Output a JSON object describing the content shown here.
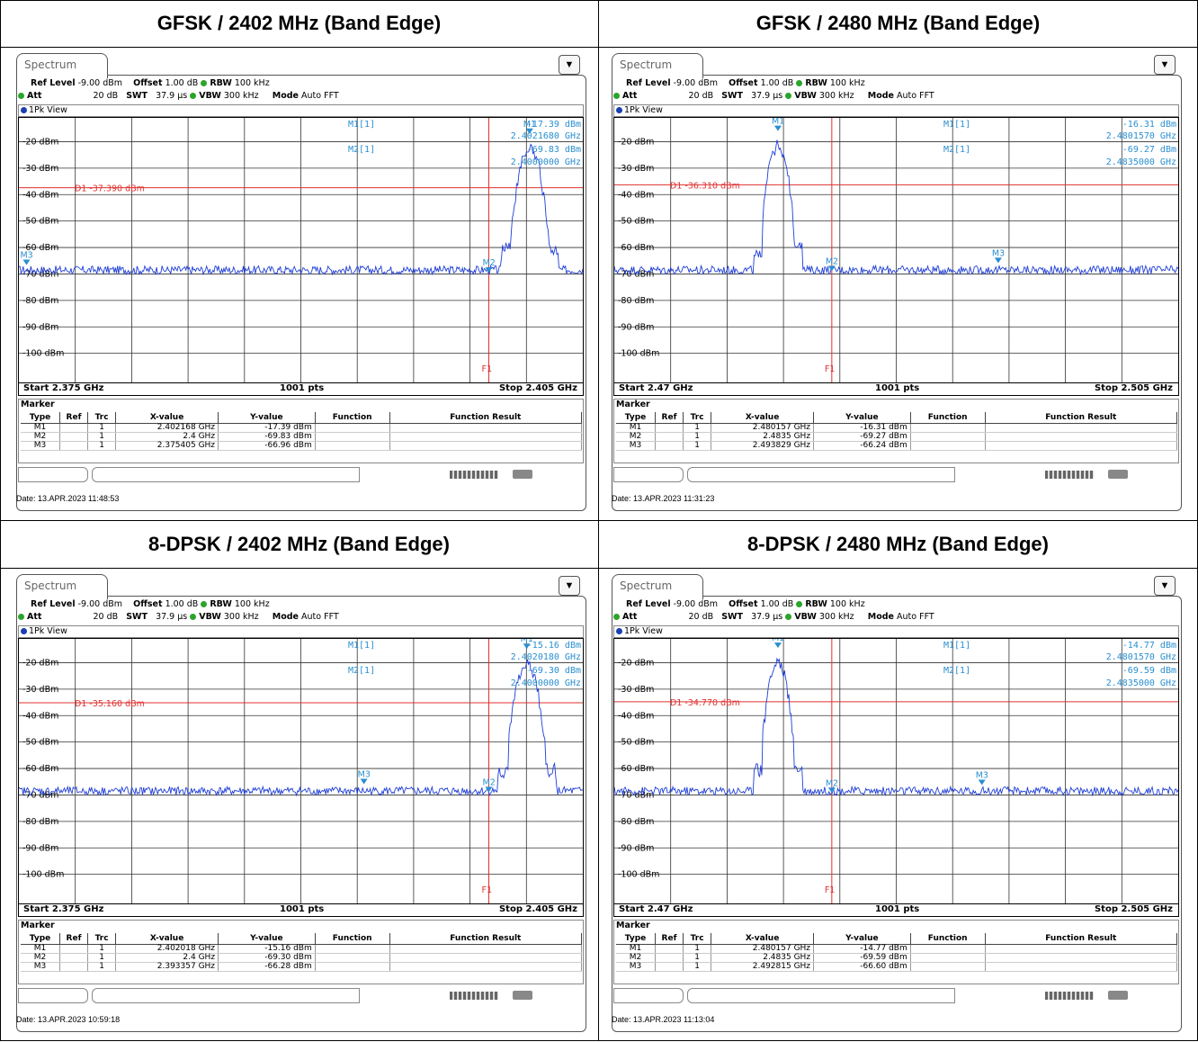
{
  "panels": [
    {
      "title": "GFSK / 2402 MHz (Band Edge)",
      "tab": "Spectrum",
      "ref_level_label": "Ref Level",
      "ref_level": "-9.00 dBm",
      "offset_label": "Offset",
      "offset": "1.00 dB",
      "rbw_label": "RBW",
      "rbw": "100 kHz",
      "att_label": "Att",
      "att": "20 dB",
      "swt_label": "SWT",
      "swt": "37.9 µs",
      "vbw_label": "VBW",
      "vbw": "300 kHz",
      "mode_label": "Mode",
      "mode": "Auto FFT",
      "view": "1Pk View",
      "d1_label": "D1 -37.390 dBm",
      "d1_value": -37.39,
      "m1_label": "M1[1]",
      "m1_y": "-17.39 dBm",
      "m1_x": "2.4021680 GHz",
      "m2_label": "M2[1]",
      "m2_y": "-69.83 dBm",
      "m2_x": "2.4000000 GHz",
      "start": "Start 2.375 GHz",
      "pts": "1001 pts",
      "stop": "Stop 2.405 GHz",
      "f1_label": "F1",
      "marker_title": "Marker",
      "cols": [
        "Type",
        "Ref",
        "Trc",
        "X-value",
        "Y-value",
        "Function",
        "Function Result"
      ],
      "rows": [
        [
          "M1",
          "",
          "1",
          "2.402168 GHz",
          "-17.39 dBm",
          "",
          ""
        ],
        [
          "M2",
          "",
          "1",
          "2.4 GHz",
          "-69.83 dBm",
          "",
          ""
        ],
        [
          "M3",
          "",
          "1",
          "2.375405 GHz",
          "-66.96 dBm",
          "",
          ""
        ]
      ],
      "date": "Date: 13.APR.2023  11:48:53",
      "chart_data": {
        "type": "line",
        "xlim": [
          2.375,
          2.405
        ],
        "ylim": [
          -111,
          -11
        ],
        "yticks": [
          "-20 dBm",
          "-30 dBm",
          "-40 dBm",
          "-50 dBm",
          "-60 dBm",
          "-70 dBm",
          "-80 dBm",
          "-90 dBm",
          "-100 dBm"
        ],
        "peak_x": 2.40217,
        "peak_y": -17.39,
        "noise": -68.5,
        "f1": 2.4,
        "markers": [
          {
            "name": "M1",
            "x": 2.402168,
            "y": -17.39
          },
          {
            "name": "M2",
            "x": 2.4,
            "y": -69.83
          },
          {
            "name": "M3",
            "x": 2.375405,
            "y": -66.96
          }
        ]
      }
    },
    {
      "title": "GFSK / 2480 MHz (Band Edge)",
      "tab": "Spectrum",
      "ref_level_label": "Ref Level",
      "ref_level": "-9.00 dBm",
      "offset_label": "Offset",
      "offset": "1.00 dB",
      "rbw_label": "RBW",
      "rbw": "100 kHz",
      "att_label": "Att",
      "att": "20 dB",
      "swt_label": "SWT",
      "swt": "37.9 µs",
      "vbw_label": "VBW",
      "vbw": "300 kHz",
      "mode_label": "Mode",
      "mode": "Auto FFT",
      "view": "1Pk View",
      "d1_label": "D1 -36.310 dBm",
      "d1_value": -36.31,
      "m1_label": "M1[1]",
      "m1_y": "-16.31 dBm",
      "m1_x": "2.4801570 GHz",
      "m2_label": "M2[1]",
      "m2_y": "-69.27 dBm",
      "m2_x": "2.4835000 GHz",
      "start": "Start 2.47 GHz",
      "pts": "1001 pts",
      "stop": "Stop 2.505 GHz",
      "f1_label": "F1",
      "marker_title": "Marker",
      "cols": [
        "Type",
        "Ref",
        "Trc",
        "X-value",
        "Y-value",
        "Function",
        "Function Result"
      ],
      "rows": [
        [
          "M1",
          "",
          "1",
          "2.480157 GHz",
          "-16.31 dBm",
          "",
          ""
        ],
        [
          "M2",
          "",
          "1",
          "2.4835 GHz",
          "-69.27 dBm",
          "",
          ""
        ],
        [
          "M3",
          "",
          "1",
          "2.493829 GHz",
          "-66.24 dBm",
          "",
          ""
        ]
      ],
      "date": "Date: 13.APR.2023  11:31:23",
      "chart_data": {
        "type": "line",
        "xlim": [
          2.47,
          2.505
        ],
        "ylim": [
          -111,
          -11
        ],
        "yticks": [
          "-20 dBm",
          "-30 dBm",
          "-40 dBm",
          "-50 dBm",
          "-60 dBm",
          "-70 dBm",
          "-80 dBm",
          "-90 dBm",
          "-100 dBm"
        ],
        "peak_x": 2.48016,
        "peak_y": -16.31,
        "noise": -68.5,
        "f1": 2.4835,
        "markers": [
          {
            "name": "M1",
            "x": 2.480157,
            "y": -16.31
          },
          {
            "name": "M2",
            "x": 2.4835,
            "y": -69.27
          },
          {
            "name": "M3",
            "x": 2.493829,
            "y": -66.24
          }
        ]
      }
    },
    {
      "title": "8-DPSK / 2402 MHz (Band Edge)",
      "tab": "Spectrum",
      "ref_level_label": "Ref Level",
      "ref_level": "-9.00 dBm",
      "offset_label": "Offset",
      "offset": "1.00 dB",
      "rbw_label": "RBW",
      "rbw": "100 kHz",
      "att_label": "Att",
      "att": "20 dB",
      "swt_label": "SWT",
      "swt": "37.9 µs",
      "vbw_label": "VBW",
      "vbw": "300 kHz",
      "mode_label": "Mode",
      "mode": "Auto FFT",
      "view": "1Pk View",
      "d1_label": "D1 -35.160 dBm",
      "d1_value": -35.16,
      "m1_label": "M1[1]",
      "m1_y": "-15.16 dBm",
      "m1_x": "2.4020180 GHz",
      "m2_label": "M2[1]",
      "m2_y": "-69.30 dBm",
      "m2_x": "2.4000000 GHz",
      "start": "Start 2.375 GHz",
      "pts": "1001 pts",
      "stop": "Stop 2.405 GHz",
      "f1_label": "F1",
      "marker_title": "Marker",
      "cols": [
        "Type",
        "Ref",
        "Trc",
        "X-value",
        "Y-value",
        "Function",
        "Function Result"
      ],
      "rows": [
        [
          "M1",
          "",
          "1",
          "2.402018 GHz",
          "-15.16 dBm",
          "",
          ""
        ],
        [
          "M2",
          "",
          "1",
          "2.4 GHz",
          "-69.30 dBm",
          "",
          ""
        ],
        [
          "M3",
          "",
          "1",
          "2.393357 GHz",
          "-66.28 dBm",
          "",
          ""
        ]
      ],
      "date": "Date: 13.APR.2023  10:59:18",
      "chart_data": {
        "type": "line",
        "xlim": [
          2.375,
          2.405
        ],
        "ylim": [
          -111,
          -11
        ],
        "yticks": [
          "-20 dBm",
          "-30 dBm",
          "-40 dBm",
          "-50 dBm",
          "-60 dBm",
          "-70 dBm",
          "-80 dBm",
          "-90 dBm",
          "-100 dBm"
        ],
        "peak_x": 2.40202,
        "peak_y": -15.16,
        "noise": -68.5,
        "f1": 2.4,
        "markers": [
          {
            "name": "M1",
            "x": 2.402018,
            "y": -15.16
          },
          {
            "name": "M2",
            "x": 2.4,
            "y": -69.3
          },
          {
            "name": "M3",
            "x": 2.393357,
            "y": -66.28
          }
        ]
      }
    },
    {
      "title": "8-DPSK / 2480 MHz (Band Edge)",
      "tab": "Spectrum",
      "ref_level_label": "Ref Level",
      "ref_level": "-9.00 dBm",
      "offset_label": "Offset",
      "offset": "1.00 dB",
      "rbw_label": "RBW",
      "rbw": "100 kHz",
      "att_label": "Att",
      "att": "20 dB",
      "swt_label": "SWT",
      "swt": "37.9 µs",
      "vbw_label": "VBW",
      "vbw": "300 kHz",
      "mode_label": "Mode",
      "mode": "Auto FFT",
      "view": "1Pk View",
      "d1_label": "D1 -34.770 dBm",
      "d1_value": -34.77,
      "m1_label": "M1[1]",
      "m1_y": "-14.77 dBm",
      "m1_x": "2.4801570 GHz",
      "m2_label": "M2[1]",
      "m2_y": "-69.59 dBm",
      "m2_x": "2.4835000 GHz",
      "start": "Start 2.47 GHz",
      "pts": "1001 pts",
      "stop": "Stop 2.505 GHz",
      "f1_label": "F1",
      "marker_title": "Marker",
      "cols": [
        "Type",
        "Ref",
        "Trc",
        "X-value",
        "Y-value",
        "Function",
        "Function Result"
      ],
      "rows": [
        [
          "M1",
          "",
          "1",
          "2.480157 GHz",
          "-14.77 dBm",
          "",
          ""
        ],
        [
          "M2",
          "",
          "1",
          "2.4835 GHz",
          "-69.59 dBm",
          "",
          ""
        ],
        [
          "M3",
          "",
          "1",
          "2.492815 GHz",
          "-66.60 dBm",
          "",
          ""
        ]
      ],
      "date": "Date: 13.APR.2023  11:13:04",
      "chart_data": {
        "type": "line",
        "xlim": [
          2.47,
          2.505
        ],
        "ylim": [
          -111,
          -11
        ],
        "yticks": [
          "-20 dBm",
          "-30 dBm",
          "-40 dBm",
          "-50 dBm",
          "-60 dBm",
          "-70 dBm",
          "-80 dBm",
          "-90 dBm",
          "-100 dBm"
        ],
        "peak_x": 2.48016,
        "peak_y": -14.77,
        "noise": -68.5,
        "f1": 2.4835,
        "markers": [
          {
            "name": "M1",
            "x": 2.480157,
            "y": -14.77
          },
          {
            "name": "M2",
            "x": 2.4835,
            "y": -69.59
          },
          {
            "name": "M3",
            "x": 2.492815,
            "y": -66.6
          }
        ]
      }
    }
  ],
  "colors": {
    "trace": "#1f3fd6",
    "limit": "#e03030",
    "marker": "#2a8fd0"
  }
}
